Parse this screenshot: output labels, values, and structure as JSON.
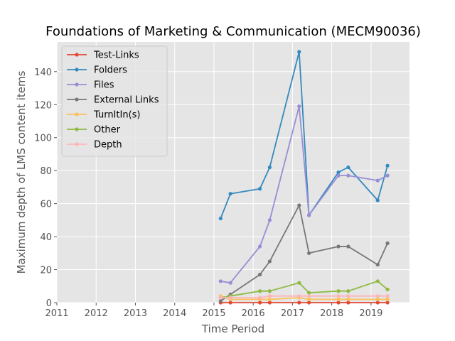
{
  "chart_data": {
    "type": "line",
    "title": "Foundations of Marketing & Communication (MECM90036)",
    "xlabel": "Time Period",
    "ylabel": "Maximum depth of LMS content items",
    "xlim": [
      2011.0,
      2019.98
    ],
    "ylim": [
      0,
      158
    ],
    "x_ticks": [
      2011,
      2012,
      2013,
      2014,
      2015,
      2016,
      2017,
      2018,
      2019
    ],
    "y_ticks": [
      0,
      20,
      40,
      60,
      80,
      100,
      120,
      140
    ],
    "grid": true,
    "legend_position": "top-left",
    "x": [
      2015.17,
      2015.42,
      2016.17,
      2016.42,
      2017.17,
      2017.42,
      2018.17,
      2018.42,
      2019.17,
      2019.42
    ],
    "series": [
      {
        "name": "Test-Links",
        "color": "#e24a33",
        "values": [
          0,
          0,
          0,
          0,
          0,
          0,
          0,
          0,
          0,
          0
        ]
      },
      {
        "name": "Folders",
        "color": "#348abd",
        "values": [
          51,
          66,
          69,
          82,
          152,
          53,
          79,
          82,
          62,
          83
        ]
      },
      {
        "name": "Files",
        "color": "#988ed5",
        "values": [
          13,
          12,
          34,
          50,
          119,
          53,
          77,
          77,
          74,
          77
        ]
      },
      {
        "name": "External Links",
        "color": "#777777",
        "values": [
          1,
          5,
          17,
          25,
          59,
          30,
          34,
          34,
          23,
          36
        ]
      },
      {
        "name": "TurnItIn(s)",
        "color": "#fbc15e",
        "values": [
          4,
          2,
          2,
          2,
          3,
          2,
          2,
          2,
          2,
          2
        ]
      },
      {
        "name": "Other",
        "color": "#8eba42",
        "values": [
          3,
          4,
          7,
          7,
          12,
          6,
          7,
          7,
          13,
          8
        ]
      },
      {
        "name": "Depth",
        "color": "#ffb5b8",
        "values": [
          3,
          3,
          3,
          4,
          4,
          4,
          4,
          4,
          4,
          4
        ]
      }
    ]
  }
}
